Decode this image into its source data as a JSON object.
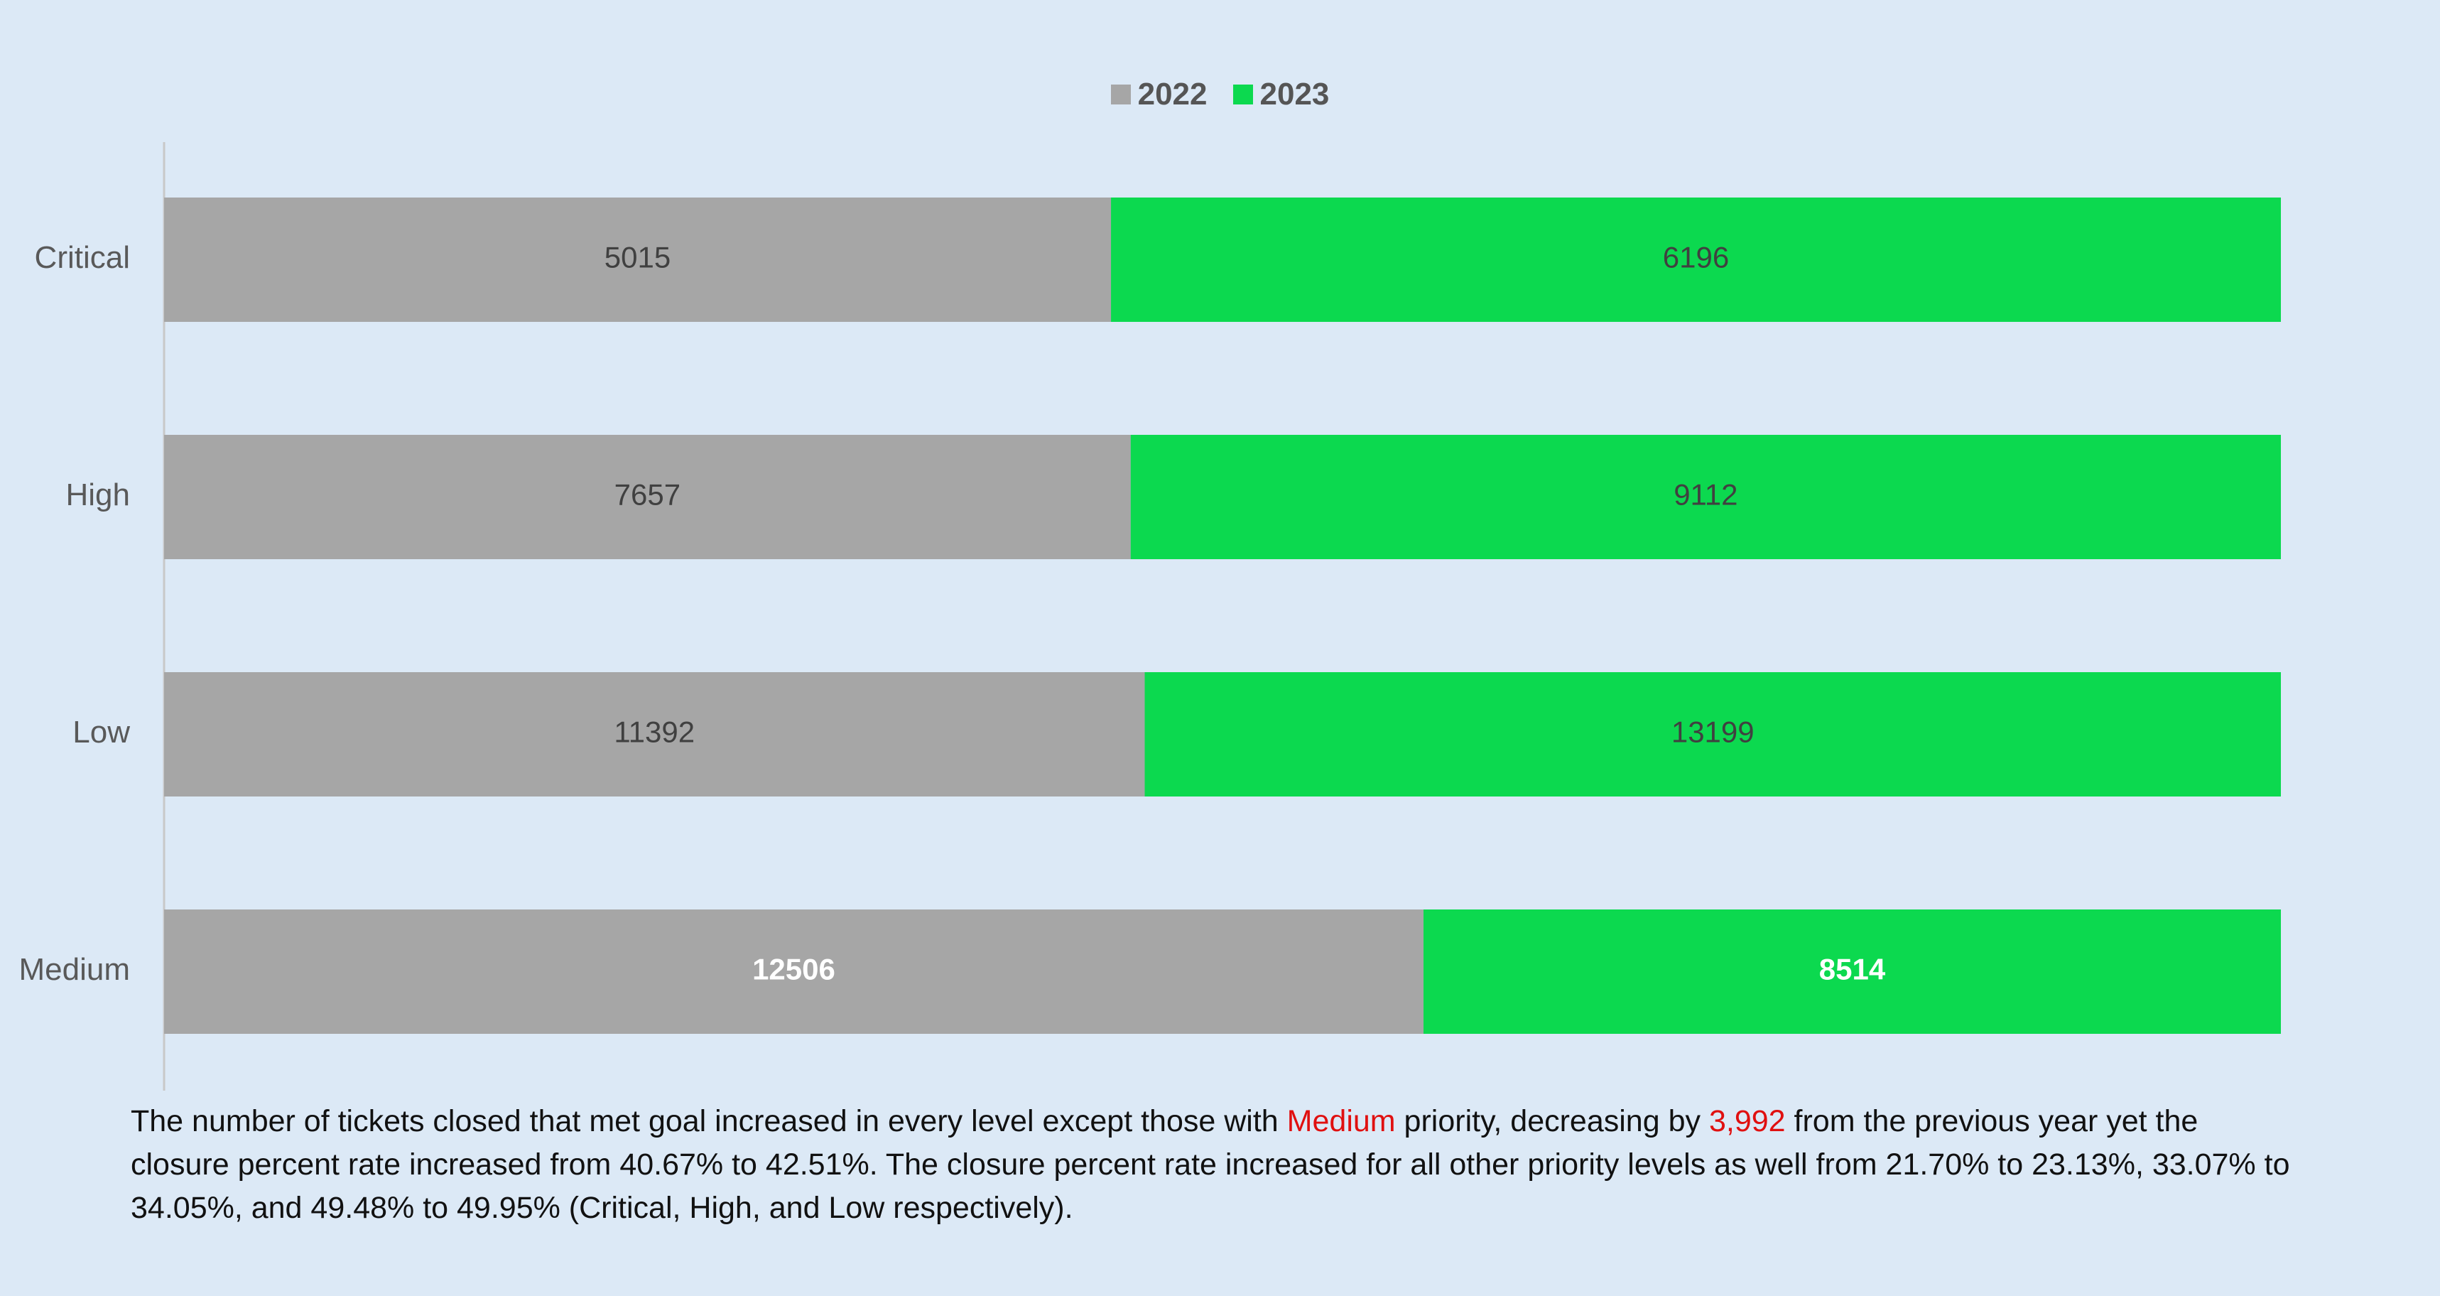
{
  "chart_data": {
    "type": "bar",
    "orientation": "horizontal",
    "stacked": "percent",
    "categories": [
      "Critical",
      "High",
      "Low",
      "Medium"
    ],
    "series": [
      {
        "name": "2022",
        "values": [
          5015,
          7657,
          11392,
          12506
        ],
        "color": "#a6a6a6"
      },
      {
        "name": "2023",
        "values": [
          6196,
          9112,
          13199,
          8514
        ],
        "color": "#0cd94f"
      }
    ],
    "highlight_category": "Medium",
    "highlight_label_color": "#ffffff",
    "label_color": "#404040",
    "legend_position": "top-center",
    "grid": false,
    "xlim": [
      0,
      1
    ]
  },
  "legend": [
    {
      "label": "2022",
      "color": "#a6a6a6"
    },
    {
      "label": "2023",
      "color": "#0cd94f"
    }
  ],
  "note": {
    "part1": "The number of tickets closed that met goal increased in every level except those with ",
    "highlight1": "Medium",
    "part2": " priority, decreasing by ",
    "highlight2": "3,992",
    "part3": " from the previous year yet the closure percent rate increased from 40.67% to 42.51%. The closure percent rate increased for all other priority levels as well from 21.70% to 23.13%, 33.07% to 34.05%, and 49.48% to 49.95% (Critical, High, and Low respectively)."
  }
}
